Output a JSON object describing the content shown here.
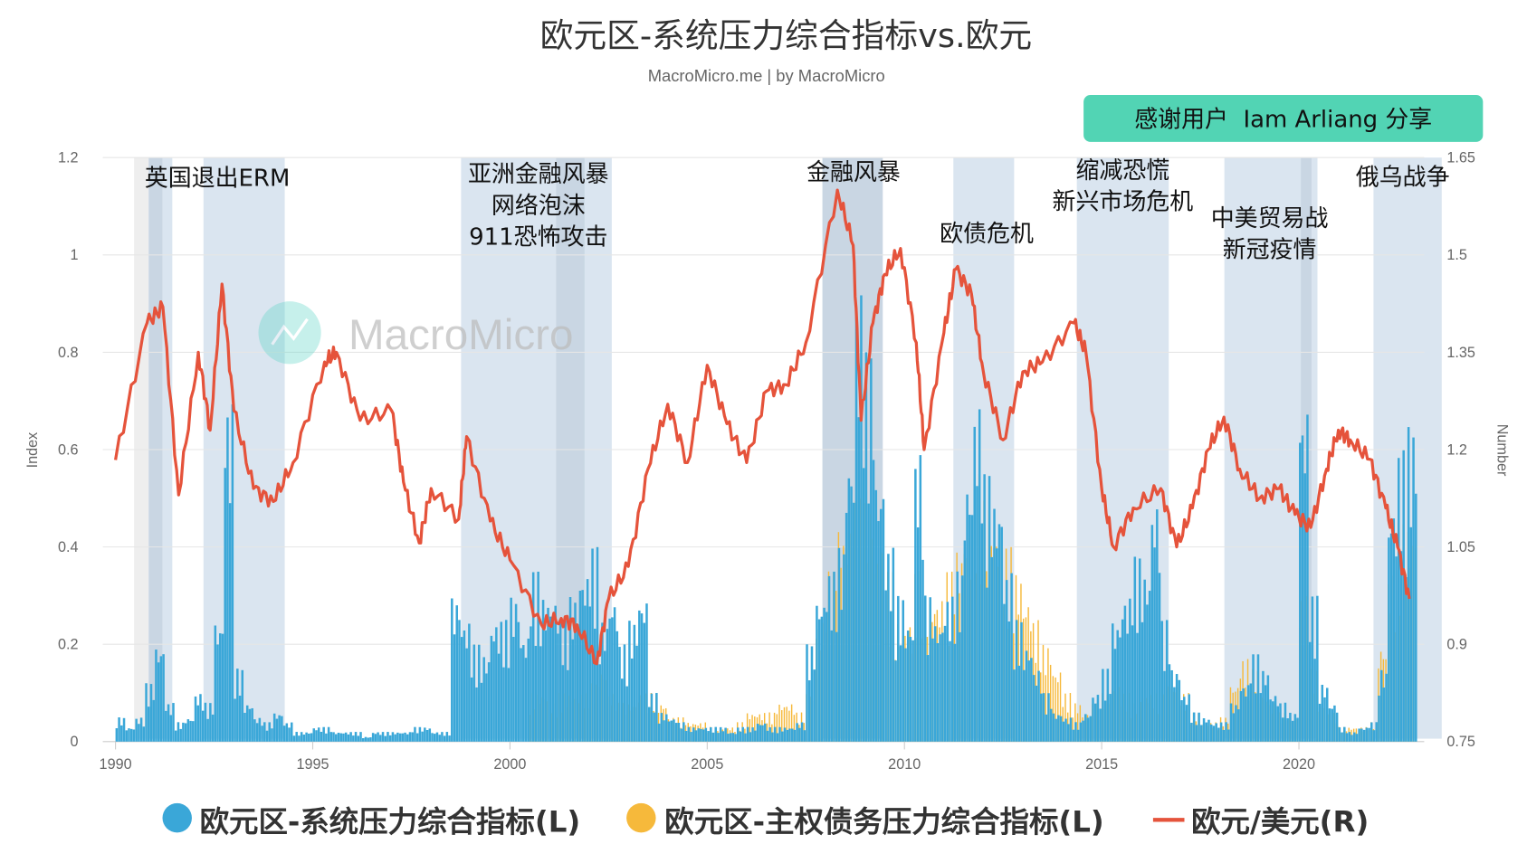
{
  "chart_data": {
    "type": "bar+line",
    "title": "欧元区-系统压力综合指标vs.欧元",
    "subtitle": "MacroMicro.me | by MacroMicro",
    "badge": "感谢用户  Iam Arliang 分享",
    "watermark": "MacroMicro",
    "ylabel_left": "Index",
    "ylabel_right": "Number",
    "ylim_left": [
      0,
      1.2
    ],
    "ylim_right": [
      0.75,
      1.65
    ],
    "xlim": [
      1990,
      2023
    ],
    "left_ticks": [
      "0",
      "0.2",
      "0.4",
      "0.6",
      "0.8",
      "1",
      "1.2"
    ],
    "right_ticks": [
      "0.75",
      "0.9",
      "1.05",
      "1.2",
      "1.35",
      "1.5",
      "1.65"
    ],
    "x_ticks": [
      "1990",
      "1995",
      "2000",
      "2005",
      "2010",
      "2015",
      "2020"
    ],
    "grid": true,
    "legend_placement": "bottom",
    "colors": {
      "systemic": "#3aa7d8",
      "sovereign": "#f6b93b",
      "eurusd": "#e5533b",
      "shade": "#dae5f0",
      "shade_dark": "#c9d6e3",
      "shade_gray": "#eeeeee",
      "badge": "#52d4b4"
    },
    "shaded_periods": [
      {
        "from": 1990.47,
        "to": 1990.84,
        "tone": "gray"
      },
      {
        "from": 1990.84,
        "to": 1991.19,
        "tone": "dark"
      },
      {
        "from": 1991.19,
        "to": 1991.44,
        "tone": "light"
      },
      {
        "from": 1992.23,
        "to": 1994.29,
        "tone": "light"
      },
      {
        "from": 1998.76,
        "to": 2002.58,
        "tone": "light"
      },
      {
        "from": 2001.17,
        "to": 2001.89,
        "tone": "dark"
      },
      {
        "from": 2007.92,
        "to": 2009.45,
        "tone": "dark"
      },
      {
        "from": 2011.24,
        "to": 2012.78,
        "tone": "light"
      },
      {
        "from": 2014.37,
        "to": 2016.7,
        "tone": "light"
      },
      {
        "from": 2018.11,
        "to": 2020.47,
        "tone": "light"
      },
      {
        "from": 2020.05,
        "to": 2020.32,
        "tone": "dark"
      },
      {
        "from": 2021.89,
        "to": 2023.62,
        "tone": "light"
      }
    ],
    "annotations": [
      {
        "lines": [
          "英国退出ERM"
        ]
      },
      {
        "lines": [
          "亚洲金融风暴",
          "网络泡沫",
          "911恐怖攻击"
        ]
      },
      {
        "lines": [
          "金融风暴"
        ]
      },
      {
        "lines": [
          "欧债危机"
        ]
      },
      {
        "lines": [
          "缩减恐慌",
          "新兴市场危机"
        ]
      },
      {
        "lines": [
          "中美贸易战",
          "新冠疫情"
        ]
      },
      {
        "lines": [
          "俄乌战争"
        ]
      }
    ],
    "series": [
      {
        "name": "欧元区-系统压力综合指标(L)",
        "type": "bar",
        "axis": "left",
        "start": 1990,
        "step": 0.25,
        "values": [
          0.05,
          0.03,
          0.05,
          0.12,
          0.2,
          0.08,
          0.04,
          0.05,
          0.1,
          0.08,
          0.25,
          0.7,
          0.15,
          0.08,
          0.05,
          0.04,
          0.06,
          0.04,
          0.02,
          0.02,
          0.03,
          0.03,
          0.02,
          0.02,
          0.02,
          0.01,
          0.02,
          0.02,
          0.02,
          0.02,
          0.03,
          0.03,
          0.02,
          0.02,
          0.3,
          0.25,
          0.2,
          0.18,
          0.25,
          0.25,
          0.3,
          0.22,
          0.35,
          0.3,
          0.3,
          0.25,
          0.3,
          0.35,
          0.4,
          0.25,
          0.3,
          0.2,
          0.25,
          0.3,
          0.1,
          0.06,
          0.05,
          0.04,
          0.03,
          0.03,
          0.03,
          0.03,
          0.02,
          0.03,
          0.03,
          0.04,
          0.03,
          0.03,
          0.03,
          0.04,
          0.2,
          0.3,
          0.35,
          0.4,
          0.6,
          0.93,
          0.8,
          0.55,
          0.4,
          0.3,
          0.25,
          0.6,
          0.3,
          0.25,
          0.3,
          0.35,
          0.55,
          0.7,
          0.55,
          0.5,
          0.35,
          0.25,
          0.2,
          0.15,
          0.1,
          0.06,
          0.05,
          0.04,
          0.06,
          0.1,
          0.15,
          0.25,
          0.3,
          0.38,
          0.35,
          0.5,
          0.25,
          0.15,
          0.1,
          0.06,
          0.05,
          0.04,
          0.04,
          0.08,
          0.12,
          0.18,
          0.15,
          0.1,
          0.08,
          0.06,
          0.7,
          0.3,
          0.12,
          0.08,
          0.03,
          0.02,
          0.03,
          0.04,
          0.15,
          0.5,
          0.6,
          0.65
        ]
      },
      {
        "name": "欧元区-主权债务压力综合指标(L)",
        "type": "bar",
        "axis": "left",
        "start": 2000.5,
        "step": 0.25,
        "values": [
          0.1,
          0.1,
          0.08,
          0.1,
          0.1,
          0.1,
          0.12,
          0.15,
          0.1,
          0.08,
          0.08,
          0.1,
          0.1,
          0.08,
          0.05,
          0.05,
          0.04,
          0.04,
          0.03,
          0.03,
          0.03,
          0.04,
          0.06,
          0.06,
          0.06,
          0.08,
          0.08,
          0.06,
          0.1,
          0.25,
          0.35,
          0.45,
          0.45,
          0.5,
          0.5,
          0.4,
          0.35,
          0.25,
          0.25,
          0.35,
          0.3,
          0.3,
          0.35,
          0.4,
          0.45,
          0.55,
          0.5,
          0.45,
          0.4,
          0.35,
          0.3,
          0.25,
          0.2,
          0.15,
          0.1,
          0.08,
          0.06,
          0.08,
          0.1,
          0.12,
          0.1,
          0.08,
          0.1,
          0.1,
          0.15,
          0.12,
          0.1,
          0.06,
          0.04,
          0.04,
          0.05,
          0.12,
          0.17,
          0.15,
          0.1,
          0.08,
          0.06,
          0.05,
          0.3,
          0.15,
          0.08,
          0.06,
          0.03,
          0.03,
          0.03,
          0.04,
          0.2,
          0.35,
          0.45,
          0.45
        ]
      },
      {
        "name": "欧元/美元(R)",
        "type": "line",
        "axis": "right",
        "points": [
          [
            1990,
            1.184
          ],
          [
            1990.8,
            1.395
          ],
          [
            1991.2,
            1.42
          ],
          [
            1991.6,
            1.13
          ],
          [
            1992.1,
            1.35
          ],
          [
            1992.4,
            1.23
          ],
          [
            1992.7,
            1.455
          ],
          [
            1993,
            1.26
          ],
          [
            1993.5,
            1.14
          ],
          [
            1994,
            1.12
          ],
          [
            1994.5,
            1.18
          ],
          [
            1995.3,
            1.335
          ],
          [
            1995.6,
            1.35
          ],
          [
            1996.2,
            1.245
          ],
          [
            1997,
            1.26
          ],
          [
            1997.3,
            1.15
          ],
          [
            1997.7,
            1.056
          ],
          [
            1998,
            1.14
          ],
          [
            1998.7,
            1.093
          ],
          [
            1998.9,
            1.22
          ],
          [
            1999.5,
            1.09
          ],
          [
            2000,
            1.03
          ],
          [
            2000.8,
            0.93
          ],
          [
            2001.3,
            0.94
          ],
          [
            2001.7,
            0.93
          ],
          [
            2002.2,
            0.87
          ],
          [
            2002.5,
            0.97
          ],
          [
            2003,
            1.02
          ],
          [
            2003.5,
            1.17
          ],
          [
            2004,
            1.27
          ],
          [
            2004.5,
            1.18
          ],
          [
            2005,
            1.33
          ],
          [
            2005.5,
            1.24
          ],
          [
            2006,
            1.18
          ],
          [
            2006.5,
            1.29
          ],
          [
            2007,
            1.3
          ],
          [
            2007.5,
            1.365
          ],
          [
            2008.3,
            1.6
          ],
          [
            2008.7,
            1.515
          ],
          [
            2008.9,
            1.245
          ],
          [
            2009.2,
            1.395
          ],
          [
            2009.5,
            1.47
          ],
          [
            2009.9,
            1.51
          ],
          [
            2010.3,
            1.365
          ],
          [
            2010.5,
            1.2
          ],
          [
            2011,
            1.38
          ],
          [
            2011.3,
            1.478
          ],
          [
            2011.7,
            1.44
          ],
          [
            2012,
            1.32
          ],
          [
            2012.5,
            1.215
          ],
          [
            2013,
            1.32
          ],
          [
            2013.5,
            1.335
          ],
          [
            2014.3,
            1.395
          ],
          [
            2014.6,
            1.35
          ],
          [
            2015,
            1.14
          ],
          [
            2015.3,
            1.05
          ],
          [
            2015.8,
            1.11
          ],
          [
            2016.5,
            1.14
          ],
          [
            2016.9,
            1.05
          ],
          [
            2017.3,
            1.11
          ],
          [
            2017.7,
            1.2
          ],
          [
            2018.1,
            1.25
          ],
          [
            2018.5,
            1.17
          ],
          [
            2019,
            1.125
          ],
          [
            2019.5,
            1.14
          ],
          [
            2019.9,
            1.1
          ],
          [
            2020.3,
            1.08
          ],
          [
            2020.7,
            1.17
          ],
          [
            2021,
            1.23
          ],
          [
            2021.3,
            1.215
          ],
          [
            2021.8,
            1.185
          ],
          [
            2022.2,
            1.11
          ],
          [
            2022.5,
            1.05
          ],
          [
            2022.8,
            0.97
          ]
        ]
      }
    ]
  }
}
